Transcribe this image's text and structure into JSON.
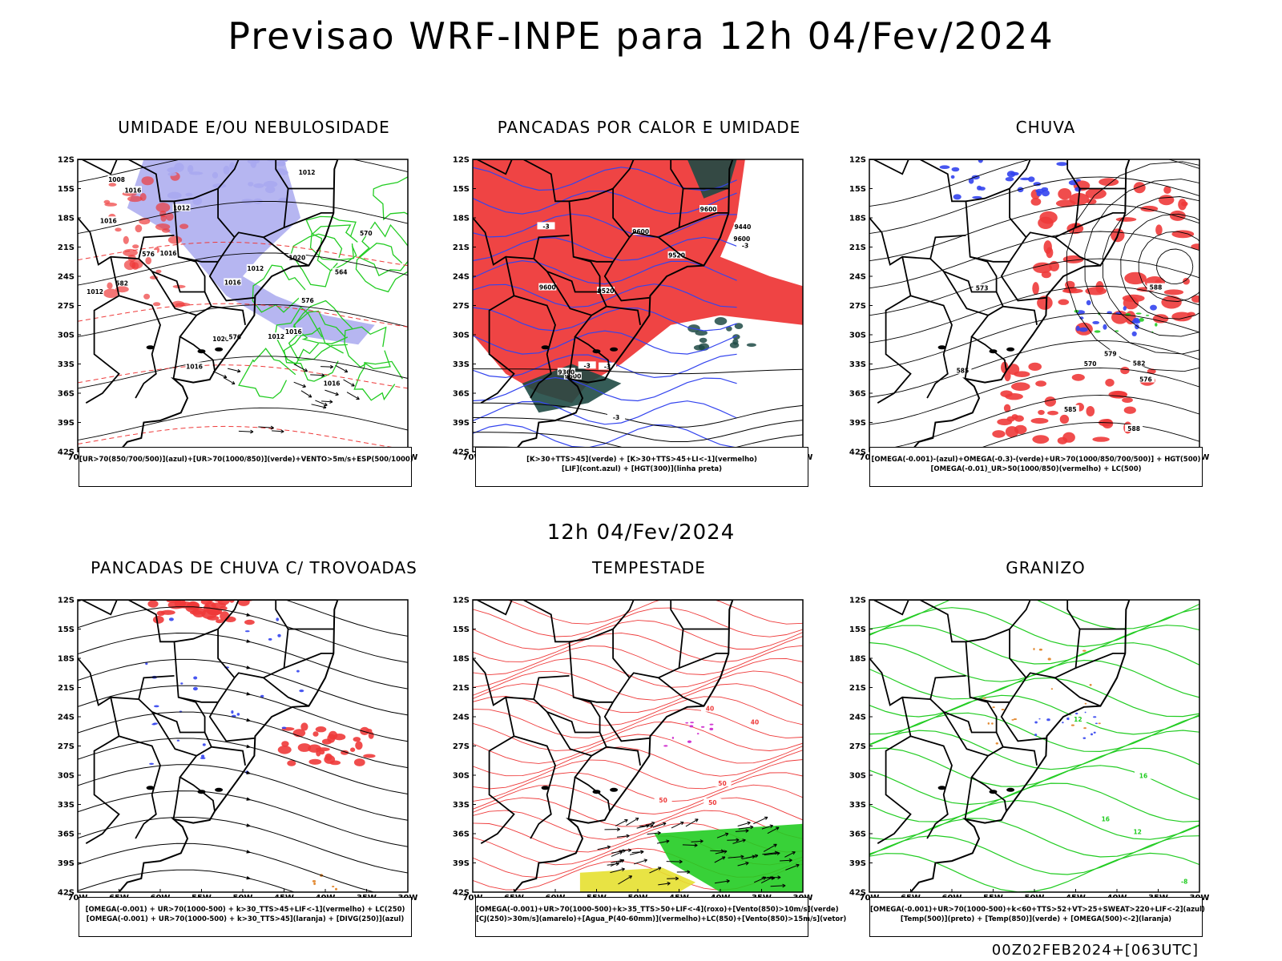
{
  "header": {
    "title": "Previsao WRF-INPE  para 12h 04/Fev/2024",
    "mid_title": "12h 04/Fev/2024",
    "footer": "00Z02FEB2024+[063UTC]"
  },
  "axes": {
    "lat_labels": [
      "12S",
      "15S",
      "18S",
      "21S",
      "24S",
      "27S",
      "30S",
      "33S",
      "36S",
      "39S",
      "42S"
    ],
    "lon_labels": [
      "70W",
      "65W",
      "60W",
      "55W",
      "50W",
      "45W",
      "40W",
      "35W",
      "30W"
    ]
  },
  "colors": {
    "red": "#ee3a3a",
    "blue": "#3344ee",
    "green": "#22cc22",
    "lavender": "#a9a9ef",
    "darkteal": "#1f4a45",
    "yellow": "#e6e030",
    "orange": "#e08020",
    "purple": "#cc22cc"
  },
  "panels": [
    {
      "title": "UMIDADE E/OU NEBULOSIDADE",
      "legend": [
        "[UR>70(850/700/500)](azul)+[UR>70(1000/850)](verde)+VENTO>5m/s+ESP(500/1000)"
      ],
      "contour_labels": [
        "1016",
        "1016",
        "1016",
        "1020",
        "1012",
        "1012",
        "1012",
        "1016",
        "1012",
        "1016",
        "1020",
        "1016",
        "1012",
        "1008",
        "1016",
        "576",
        "576",
        "570",
        "564",
        "582",
        "576"
      ]
    },
    {
      "title": "PANCADAS POR CALOR E UMIDADE",
      "legend": [
        "[K>30+TTS>45](verde) + [K>30+TTS>45+LI<-1](vermelho)",
        "[LIF](cont.azul) + [HGT(300)](linha preta)"
      ],
      "contour_labels": [
        "9600",
        "9600",
        "9600",
        "9600",
        "9600",
        "9520",
        "9440",
        "9360",
        "9520",
        "-3",
        "-3",
        "-3",
        "-3",
        "-3"
      ]
    },
    {
      "title": "CHUVA",
      "legend": [
        "[OMEGA(-0.001)-(azul)+OMEGA(-0.3)-(verde)+UR>70(1000/850/700/500)] + HGT(500)",
        "[OMEGA(-0.01)_UR>50(1000/850)(vermelho) + LC(500)"
      ],
      "contour_labels": [
        "588",
        "585",
        "582",
        "579",
        "576",
        "573",
        "570",
        "588",
        "585"
      ]
    },
    {
      "title": "PANCADAS DE CHUVA C/ TROVOADAS",
      "legend": [
        "[OMEGA(-0.001) + UR>70(1000-500) + k>30_TTS>45+LIF<-1](vermelho) + LC(250)",
        "[OMEGA(-0.001) + UR>70(1000-500) + k>30_TTS>45](laranja) + [DIVG(250)](azul)"
      ],
      "contour_labels": []
    },
    {
      "title": "TEMPESTADE",
      "legend": [
        "[OMEGA(-0.001)+UR>70(1000-500)+k>35_TTS>50+LIF<-4](roxo)+[Vento(850)>10m/s](verde)",
        "[CJ(250)>30m/s](amarelo)+[Agua_P(40-60mm)](vermelho)+LC(850)+[Vento(850)>15m/s](vetor)"
      ],
      "contour_labels": [
        "50",
        "40",
        "50",
        "40",
        "50"
      ]
    },
    {
      "title": "GRANIZO",
      "legend": [
        "[OMEGA(-0.001)+UR>70(1000-500)+k<60+TTS>52+VT>25+SWEAT>220+LIF<-2](azul)",
        "[Temp(500)](preto) + [Temp(850)](verde) + [OMEGA(500)<-2](laranja)"
      ],
      "contour_labels": [
        "16",
        "12",
        "-8",
        "16",
        "12"
      ]
    }
  ]
}
